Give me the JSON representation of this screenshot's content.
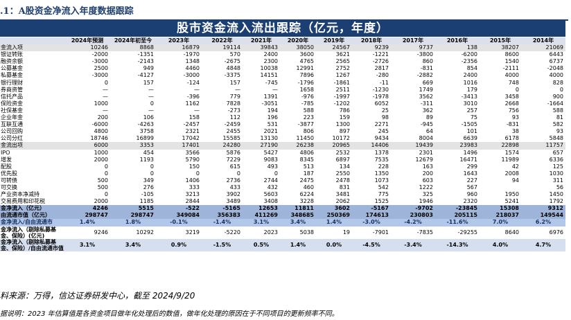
{
  "caption": ".1：A股资金净流入年度数据跟踪",
  "banner_title": "股市资金流入流出跟踪（亿元，年度）",
  "table": {
    "columns": [
      "",
      "2024年预测",
      "2024年初至今",
      "2023年",
      "2022年",
      "2021年",
      "2020年",
      "2019年",
      "2018年",
      "2017年",
      "2016年",
      "2015年",
      "2014年"
    ],
    "rows": [
      {
        "style": "shade",
        "label": "金流入项",
        "cells": [
          "10246",
          "8868",
          "16879",
          "19114",
          "39843",
          "38050",
          "24567",
          "9239",
          "9737",
          "138",
          "38207",
          "21069"
        ]
      },
      {
        "style": "",
        "label": "银证转账",
        "cells": [
          "-2000",
          "-1351",
          "-1970",
          "570",
          "2400",
          "3600",
          "3621",
          "-1221",
          "-3800",
          "-6200",
          "8600",
          "6443"
        ]
      },
      {
        "style": "",
        "label": "融资余额",
        "cells": [
          "-3000",
          "-2143",
          "1348",
          "-2675",
          "2300",
          "4765",
          "2565",
          "-2726",
          "860",
          "-2356",
          "1540",
          "6737"
        ]
      },
      {
        "style": "",
        "label": "公募基金",
        "cells": [
          "2500",
          "949",
          "4460",
          "4848",
          "10038",
          "12991",
          "2752",
          "2817",
          "-831",
          "854",
          "-2111",
          "-2048"
        ]
      },
      {
        "style": "",
        "label": "私募基金",
        "cells": [
          "-3000",
          "-4127",
          "-3000",
          "-3375",
          "14151",
          "7896",
          "1267",
          "-280",
          "-2882",
          "2400",
          "4000",
          "4000"
        ]
      },
      {
        "style": "",
        "label": "银行理财",
        "cells": [
          "0",
          "157",
          "-124",
          "157",
          "-745",
          "-1796",
          "-1861",
          "-11",
          "669",
          "1016",
          "748",
          "828"
        ]
      },
      {
        "style": "",
        "label": "券商资管",
        "cells": [
          "—",
          "—",
          "—",
          "—",
          "—",
          "1658",
          "2511",
          "-1230",
          "1749",
          "179",
          "0",
          "0"
        ]
      },
      {
        "style": "",
        "label": "信托产品",
        "cells": [
          "—",
          "—",
          "-396",
          "779",
          "1391",
          "-976",
          "-1997",
          "-1978",
          "3562",
          "-3413",
          "3458",
          "900"
        ]
      },
      {
        "style": "",
        "label": "保险资金",
        "cells": [
          "1000",
          "0",
          "1162",
          "7828",
          "-3051",
          "-785",
          "-1202",
          "6052",
          "-311",
          "3010",
          "2668",
          "-1664"
        ]
      },
      {
        "style": "",
        "label": "社保基金",
        "cells": [
          "—",
          "—",
          "—",
          "-273",
          "194",
          "588",
          "786",
          "25",
          "362",
          "257",
          "756",
          "588"
        ]
      },
      {
        "style": "",
        "label": "企业年金",
        "cells": [
          "200",
          "106",
          "158",
          "112",
          "196",
          "223",
          "159",
          "98",
          "89",
          "75",
          "93",
          "81"
        ]
      },
      {
        "style": "",
        "label": "互联互通",
        "cells": [
          "-6000",
          "-4263",
          "-2457",
          "-2459",
          "531",
          "-3877",
          "1300",
          "2271",
          "-945",
          "-1505",
          "-831",
          "582"
        ]
      },
      {
        "style": "",
        "label": "公司回购",
        "cells": [
          "4800",
          "3758",
          "2321",
          "2455",
          "2021",
          "806",
          "897",
          "245",
          "64",
          "101",
          "38",
          "93"
        ]
      },
      {
        "style": "",
        "label": "公司分红",
        "cells": [
          "18746",
          "16899",
          "17042",
          "15585",
          "13130",
          "11450",
          "10172",
          "9434",
          "8004",
          "6639",
          "6178",
          "5848"
        ]
      },
      {
        "style": "shade",
        "label": "金流出项",
        "cells": [
          "6000",
          "3353",
          "17401",
          "24280",
          "27190",
          "26238",
          "20965",
          "14406",
          "19439",
          "23983",
          "22898",
          "11757"
        ]
      },
      {
        "style": "",
        "label": "IPO",
        "cells": [
          "1000",
          "454",
          "3566",
          "5876",
          "5427",
          "4806",
          "2532",
          "1378",
          "2301",
          "1496",
          "1574",
          "657"
        ]
      },
      {
        "style": "",
        "label": "增发",
        "cells": [
          "2000",
          "1193",
          "5790",
          "7229",
          "9083",
          "8345",
          "6897",
          "7535",
          "12679",
          "16471",
          "11989",
          "6336"
        ]
      },
      {
        "style": "",
        "label": "配股",
        "cells": [
          "0",
          "0",
          "150",
          "615",
          "493",
          "513",
          "134",
          "228",
          "163",
          "299",
          "42",
          "125"
        ]
      },
      {
        "style": "",
        "label": "优先股",
        "cells": [
          "0",
          "0",
          "0",
          "0",
          "0",
          "187",
          "2550",
          "1350",
          "200",
          "1643",
          "2008",
          "1030"
        ]
      },
      {
        "style": "",
        "label": "可转债",
        "cells": [
          "500",
          "349",
          "1406",
          "2736",
          "2744",
          "2475",
          "2478",
          "1073",
          "603",
          "227",
          "94",
          "311"
        ]
      },
      {
        "style": "",
        "label": "可交换",
        "cells": [
          "500",
          "276",
          "333",
          "433",
          "432",
          "460",
          "831",
          "542",
          "1222",
          "567",
          "",
          "56"
        ]
      },
      {
        "style": "",
        "label": "产业资本净减持",
        "cells": [
          "0",
          "-105",
          "3213",
          "3902",
          "5603",
          "6224",
          "3481",
          "775",
          "325",
          "960",
          "1950",
          "1450"
        ]
      },
      {
        "style": "",
        "label": "交易费用和印花税",
        "cells": [
          "2000",
          "1185",
          "2844",
          "3489",
          "3408",
          "3228",
          "2062",
          "1525",
          "1946",
          "2320",
          "5241",
          "1792"
        ]
      },
      {
        "style": "total",
        "label": "金净流入（亿元）",
        "cells": [
          "4246",
          "5515",
          "-522",
          "-5165",
          "12653",
          "11811",
          "3602",
          "-5167",
          "-9702",
          "-23845",
          "15308",
          "9312"
        ]
      },
      {
        "style": "total",
        "label": "由流通市值（亿元）",
        "cells": [
          "298747",
          "298747",
          "349084",
          "356383",
          "411269",
          "348685",
          "250369",
          "174613",
          "230803",
          "205115",
          "218037",
          "149544"
        ]
      },
      {
        "style": "ratio",
        "label": "金净流入/自由流通市",
        "cells": [
          "1.4%",
          "1.8%",
          "-0.1%",
          "-1.4%",
          "3.1%",
          "3.4%",
          "1.4%",
          "-3.0%",
          "-4.2%",
          "-11.6%",
          "7.0%",
          "6.2%"
        ]
      },
      {
        "style": "tall",
        "label": "金净流入（剔除私募基金、保险）(亿元)",
        "cells": [
          "9246",
          "10292",
          "3219",
          "-5220",
          "2023",
          "5038",
          "19",
          "-7901",
          "-7835",
          "-29255",
          "8640",
          "6976"
        ]
      },
      {
        "style": "tall alt",
        "label": "金净流入（剔除私募基金、保险）/自由流通市值",
        "cells": [
          "3.1%",
          "3.4%",
          "0.9%",
          "-1.5%",
          "0.5%",
          "1.4%",
          "0.0%",
          "-4.5%",
          "-3.4%",
          "-14.3%",
          "4.0%",
          "4.7%"
        ]
      }
    ]
  },
  "source": "料来源：万得，信达证券研发中心，截至 2024/9/20",
  "note": "据说明：2023 年估算值是各资金项目做年化处理后的数值，做年化处理的原因在于不同项目的更新频率不同。"
}
